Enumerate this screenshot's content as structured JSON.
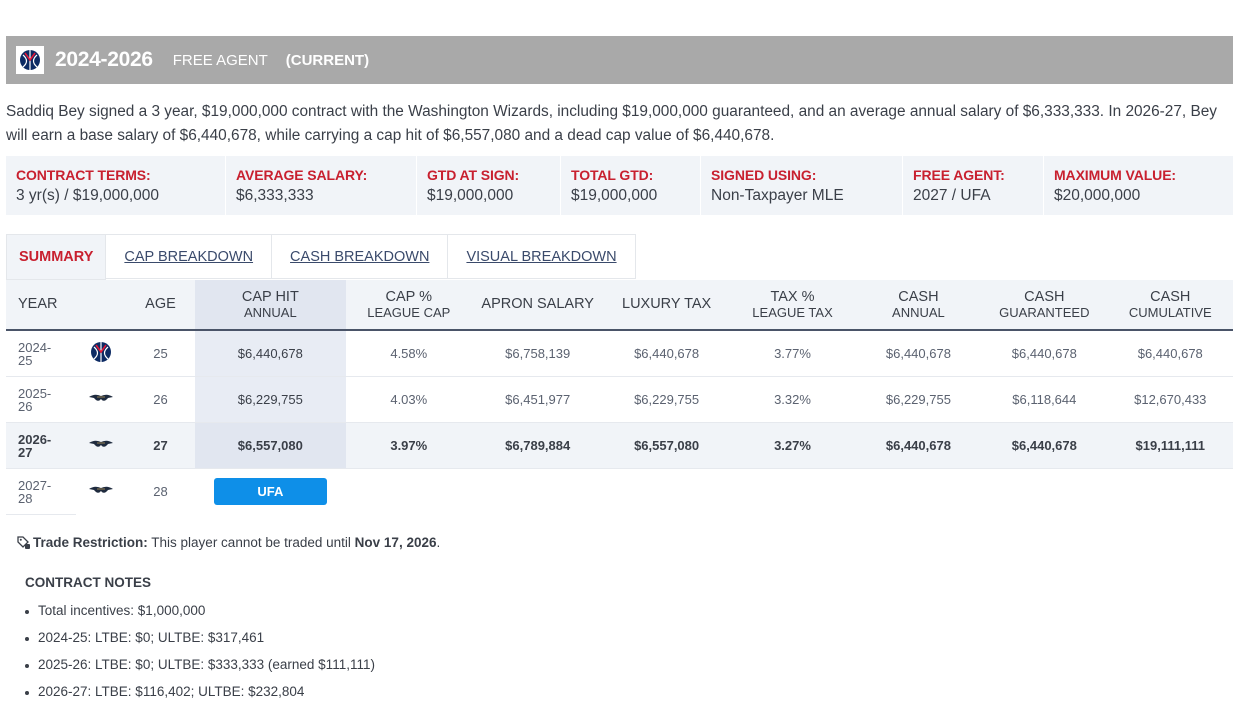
{
  "header": {
    "years": "2024-2026",
    "type": "FREE AGENT",
    "status": "(CURRENT)",
    "team_logo_icon": "washington-wizards-logo"
  },
  "summary": "Saddiq Bey signed a 3 year, $19,000,000 contract with the Washington Wizards, including $19,000,000 guaranteed, and an average annual salary of $6,333,333. In 2026-27, Bey will earn a base salary of $6,440,678, while carrying a cap hit of $6,557,080 and a dead cap value of $6,440,678.",
  "terms": [
    {
      "label": "CONTRACT TERMS:",
      "value": "3 yr(s) / $19,000,000"
    },
    {
      "label": "AVERAGE SALARY:",
      "value": "$6,333,333"
    },
    {
      "label": "GTD AT SIGN:",
      "value": "$19,000,000"
    },
    {
      "label": "TOTAL GTD:",
      "value": "$19,000,000"
    },
    {
      "label": "SIGNED USING:",
      "value": "Non-Taxpayer MLE"
    },
    {
      "label": "FREE AGENT:",
      "value": "2027 / UFA"
    },
    {
      "label": "MAXIMUM VALUE:",
      "value": "$20,000,000"
    }
  ],
  "tabs": [
    {
      "label": "SUMMARY",
      "active": true
    },
    {
      "label": "CAP BREAKDOWN",
      "active": false
    },
    {
      "label": "CASH BREAKDOWN",
      "active": false
    },
    {
      "label": "VISUAL BREAKDOWN",
      "active": false
    }
  ],
  "table": {
    "headers": {
      "year": "YEAR",
      "age": "AGE",
      "cap_hit": "CAP HIT",
      "cap_hit_sub": "ANNUAL",
      "cap_pct": "CAP %",
      "cap_pct_sub": "LEAGUE CAP",
      "apron": "APRON SALARY",
      "lux": "LUXURY TAX",
      "tax_pct": "TAX %",
      "tax_pct_sub": "LEAGUE TAX",
      "cash_annual": "CASH",
      "cash_annual_sub": "ANNUAL",
      "cash_gtd": "CASH",
      "cash_gtd_sub": "GUARANTEED",
      "cash_cum": "CASH",
      "cash_cum_sub": "CUMULATIVE"
    },
    "rows": [
      {
        "year_a": "2024-",
        "year_b": "25",
        "logo": "washington-wizards-logo",
        "age": "25",
        "cap_hit": "$6,440,678",
        "cap_pct": "4.58%",
        "apron": "$6,758,139",
        "lux": "$6,440,678",
        "tax_pct": "3.77%",
        "cash_annual": "$6,440,678",
        "cash_gtd": "$6,440,678",
        "cash_cum": "$6,440,678"
      },
      {
        "year_a": "2025-",
        "year_b": "26",
        "logo": "new-orleans-pelicans-logo",
        "age": "26",
        "cap_hit": "$6,229,755",
        "cap_pct": "4.03%",
        "apron": "$6,451,977",
        "lux": "$6,229,755",
        "tax_pct": "3.32%",
        "cash_annual": "$6,229,755",
        "cash_gtd": "$6,118,644",
        "cash_cum": "$12,670,433"
      },
      {
        "year_a": "2026-",
        "year_b": "27",
        "logo": "new-orleans-pelicans-logo",
        "age": "27",
        "cap_hit": "$6,557,080",
        "cap_pct": "3.97%",
        "apron": "$6,789,884",
        "lux": "$6,557,080",
        "tax_pct": "3.27%",
        "cash_annual": "$6,440,678",
        "cash_gtd": "$6,440,678",
        "cash_cum": "$19,111,111"
      },
      {
        "year_a": "2027-",
        "year_b": "28",
        "logo": "new-orleans-pelicans-logo",
        "age": "28",
        "status": "UFA"
      }
    ]
  },
  "trade": {
    "icon": "restriction-tag-icon",
    "label": "Trade Restriction:",
    "text": " This player cannot be traded until ",
    "date": "Nov 17, 2026",
    "end": "."
  },
  "notes": {
    "title": "CONTRACT NOTES",
    "items": [
      "Total incentives: $1,000,000",
      "2024-25: LTBE: $0; ULTBE: $317,461",
      "2025-26: LTBE: $0; ULTBE: $333,333 (earned $111,111)",
      "2026-27: LTBE: $116,402; ULTBE: $232,804"
    ]
  },
  "colors": {
    "header_bar": "#a9a9a9",
    "accent_red": "#c8202f",
    "ufa_blue": "#0e8fe8",
    "wizards_navy": "#0c2a63",
    "wizards_red": "#e31837"
  }
}
